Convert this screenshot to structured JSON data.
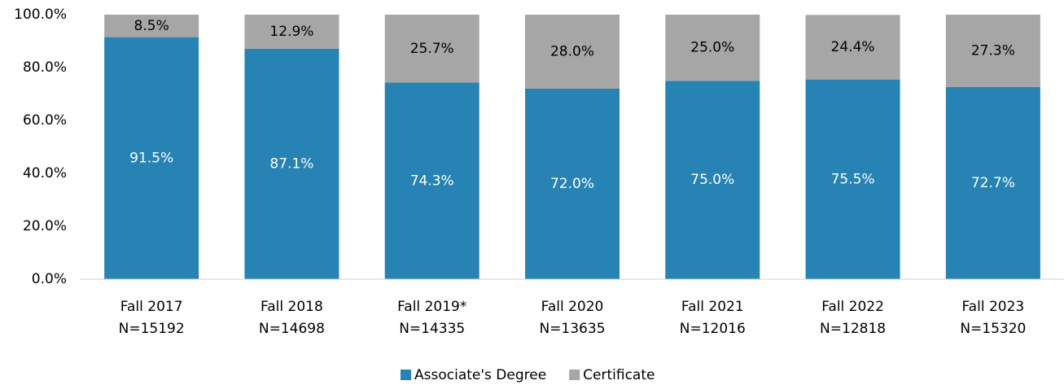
{
  "chart_data": {
    "type": "stacked_bar",
    "categories": [
      [
        "Fall 2017",
        "N=15192"
      ],
      [
        "Fall 2018",
        "N=14698"
      ],
      [
        "Fall 2019*",
        "N=14335"
      ],
      [
        "Fall 2020",
        "N=13635"
      ],
      [
        "Fall 2021",
        "N=12016"
      ],
      [
        "Fall 2022",
        "N=12818"
      ],
      [
        "Fall 2023",
        "N=15320"
      ]
    ],
    "series": [
      {
        "name": "Associate's Degree",
        "color": "#2683b3",
        "label_color": "#ffffff",
        "values": [
          91.5,
          87.1,
          74.3,
          72.0,
          75.0,
          75.5,
          72.7
        ],
        "value_labels": [
          "91.5%",
          "87.1%",
          "74.3%",
          "72.0%",
          "75.0%",
          "75.5%",
          "72.7%"
        ]
      },
      {
        "name": "Certificate",
        "color": "#a6a6a6",
        "label_color": "#000000",
        "values": [
          8.5,
          12.9,
          25.7,
          28.0,
          25.0,
          24.4,
          27.3
        ],
        "value_labels": [
          "8.5%",
          "12.9%",
          "25.7%",
          "28.0%",
          "25.0%",
          "24.4%",
          "27.3%"
        ]
      }
    ],
    "ylim": [
      0,
      100
    ],
    "yticks": [
      {
        "value": 0,
        "label": "0.0%"
      },
      {
        "value": 20,
        "label": "20.0%"
      },
      {
        "value": 40,
        "label": "40.0%"
      },
      {
        "value": 60,
        "label": "60.0%"
      },
      {
        "value": 80,
        "label": "80.0%"
      },
      {
        "value": 100,
        "label": "100.0%"
      }
    ],
    "legend": "bottom"
  }
}
